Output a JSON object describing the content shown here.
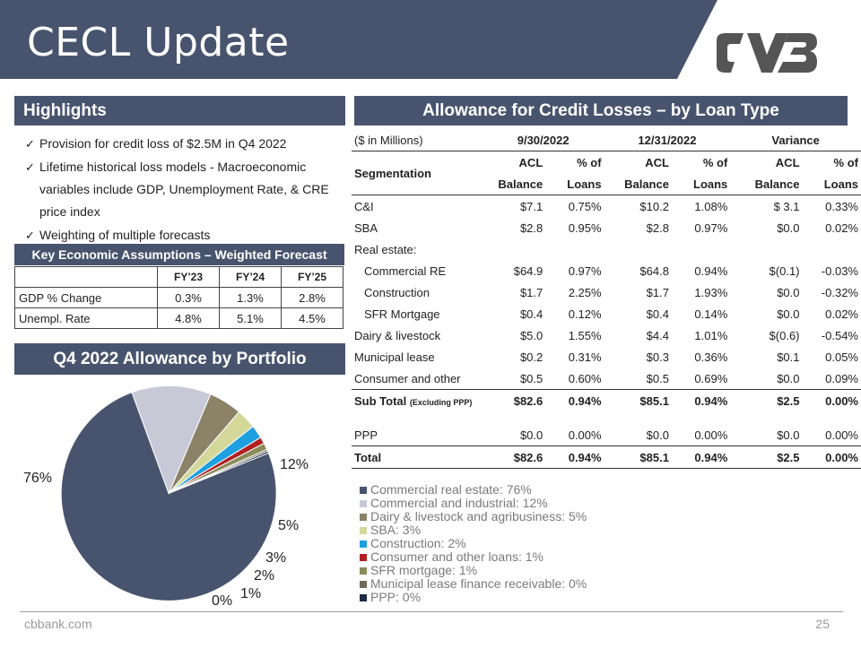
{
  "header": {
    "title": "CECL Update"
  },
  "colors": {
    "navy": "#48546e",
    "pie": [
      "#48546e",
      "#c7c9d7",
      "#8b8268",
      "#d3d89a",
      "#1ea0e0",
      "#b02020",
      "#8a8a5a",
      "#6f6a5a",
      "#1f2a44"
    ]
  },
  "highlights": {
    "title": "Highlights",
    "bullets": [
      "Provision for credit loss of $2.5M in Q4 2022",
      "Lifetime historical loss models - Macroeconomic variables include GDP, Unemployment Rate, & CRE price index",
      "Weighting of multiple forecasts"
    ]
  },
  "key_assumptions": {
    "title": "Key Economic Assumptions – Weighted Forecast",
    "headers": [
      "",
      "FY’23",
      "FY’24",
      "FY’25"
    ],
    "rows": [
      [
        "GDP % Change",
        "0.3%",
        "1.3%",
        "2.8%"
      ],
      [
        "Unempl. Rate",
        "4.8%",
        "5.1%",
        "4.5%"
      ]
    ]
  },
  "portfolio": {
    "title": "Q4 2022 Allowance by Portfolio",
    "labels": [
      "76%",
      "12%",
      "5%",
      "3%",
      "2%",
      "1%",
      "0%"
    ]
  },
  "acl": {
    "title": "Allowance for Credit Losses – by Loan Type",
    "units": "($ in Millions)",
    "periods": [
      "9/30/2022",
      "12/31/2022",
      "Variance"
    ],
    "seg_label": "Segmentation",
    "h1": [
      "ACL",
      "% of",
      "ACL",
      "% of",
      "ACL",
      "% of"
    ],
    "h2": [
      "Balance",
      "Loans",
      "Balance",
      "Loans",
      "Balance",
      "Loans"
    ],
    "rows": {
      "ci": [
        "C&I",
        "$7.1",
        "0.75%",
        "$10.2",
        "1.08%",
        "$ 3.1",
        "0.33%"
      ],
      "sba": [
        "SBA",
        "$2.8",
        "0.95%",
        "$2.8",
        "0.97%",
        "$0.0",
        "0.02%"
      ],
      "re": [
        "Real estate:"
      ],
      "cre": [
        "Commercial RE",
        "$64.9",
        "0.97%",
        "$64.8",
        "0.94%",
        "$(0.1)",
        "-0.03%"
      ],
      "con": [
        "Construction",
        "$1.7",
        "2.25%",
        "$1.7",
        "1.93%",
        "$0.0",
        "-0.32%"
      ],
      "sfr": [
        "SFR Mortgage",
        "$0.4",
        "0.12%",
        "$0.4",
        "0.14%",
        "$0.0",
        "0.02%"
      ],
      "dairy": [
        "Dairy & livestock",
        "$5.0",
        "1.55%",
        "$4.4",
        "1.01%",
        "$(0.6)",
        "-0.54%"
      ],
      "muni": [
        "Municipal lease",
        "$0.2",
        "0.31%",
        "$0.3",
        "0.36%",
        "$0.1",
        "0.05%"
      ],
      "cons": [
        "Consumer and other",
        "$0.5",
        "0.60%",
        "$0.5",
        "0.69%",
        "$0.0",
        "0.09%"
      ],
      "sub": [
        "Sub Total",
        "$82.6",
        "0.94%",
        "$85.1",
        "0.94%",
        "$2.5",
        "0.00%"
      ],
      "ppp": [
        "PPP",
        "$0.0",
        "0.00%",
        "$0.0",
        "0.00%",
        "$0.0",
        "0.00%"
      ],
      "total": [
        "Total",
        "$82.6",
        "0.94%",
        "$85.1",
        "0.94%",
        "$2.5",
        "0.00%"
      ]
    },
    "sub_note": "(Excluding PPP)"
  },
  "chart_data": {
    "type": "pie",
    "title": "Q4 2022 Allowance by Portfolio",
    "slices": [
      {
        "name": "Commercial real estate",
        "value": 76
      },
      {
        "name": "Commercial and industrial",
        "value": 12
      },
      {
        "name": "Dairy & livestock and agribusiness",
        "value": 5
      },
      {
        "name": "SBA",
        "value": 3
      },
      {
        "name": "Construction",
        "value": 2
      },
      {
        "name": "Consumer and other loans",
        "value": 1
      },
      {
        "name": "SFR mortgage",
        "value": 1
      },
      {
        "name": "Municipal lease finance receivable",
        "value": 0
      },
      {
        "name": "PPP",
        "value": 0
      }
    ],
    "legend": [
      "Commercial real estate: 76%",
      "Commercial and industrial: 12%",
      "Dairy & livestock and agribusiness: 5%",
      "SBA: 3%",
      "Construction: 2%",
      "Consumer and other loans: 1%",
      "SFR mortgage: 1%",
      "Municipal lease finance receivable: 0%",
      "PPP: 0%"
    ],
    "legend_position": "bottom-right"
  },
  "footer": {
    "site": "cbbank.com",
    "page": "25"
  }
}
